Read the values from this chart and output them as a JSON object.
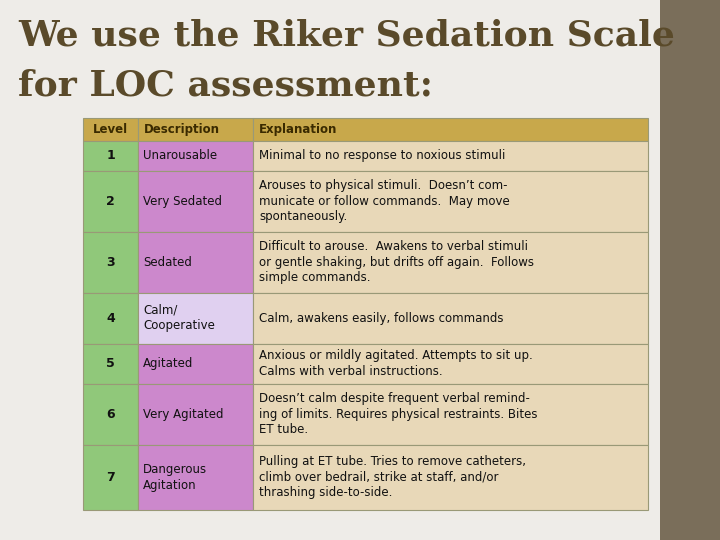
{
  "title_line1": "We use the Riker Sedation Scale",
  "title_line2": "for LOC assessment:",
  "title_color": "#5a4a2a",
  "bg_color": "#eeece8",
  "sidebar_color": "#7a6e5a",
  "header_bg": "#c8a84b",
  "header_text_color": "#3a2a00",
  "level_bg": "#90c87a",
  "expl_col_bg": "#e8d8b8",
  "border_color": "#999977",
  "rows": [
    {
      "level": "1",
      "description": "Unarousable",
      "explanation": "Minimal to no response to noxious stimuli",
      "desc_bg": "#cc88cc"
    },
    {
      "level": "2",
      "description": "Very Sedated",
      "explanation": "Arouses to physical stimuli.  Doesn’t com-\nmunicate or follow commands.  May move\nspontaneously.",
      "desc_bg": "#cc88cc"
    },
    {
      "level": "3",
      "description": "Sedated",
      "explanation": "Difficult to arouse.  Awakens to verbal stimuli\nor gentle shaking, but drifts off again.  Follows\nsimple commands.",
      "desc_bg": "#cc88cc"
    },
    {
      "level": "4",
      "description": "Calm/\nCooperative",
      "explanation": "Calm, awakens easily, follows commands",
      "desc_bg": "#e0d0f0"
    },
    {
      "level": "5",
      "description": "Agitated",
      "explanation": "Anxious or mildly agitated. Attempts to sit up.\nCalms with verbal instructions.",
      "desc_bg": "#cc88cc"
    },
    {
      "level": "6",
      "description": "Very Agitated",
      "explanation": "Doesn’t calm despite frequent verbal remind-\ning of limits. Requires physical restraints. Bites\nET tube.",
      "desc_bg": "#cc88cc"
    },
    {
      "level": "7",
      "description": "Dangerous\nAgitation",
      "explanation": "Pulling at ET tube. Tries to remove catheters,\nclimb over bedrail, strike at staff, and/or\nthrashing side-to-side.",
      "desc_bg": "#cc88cc"
    }
  ]
}
